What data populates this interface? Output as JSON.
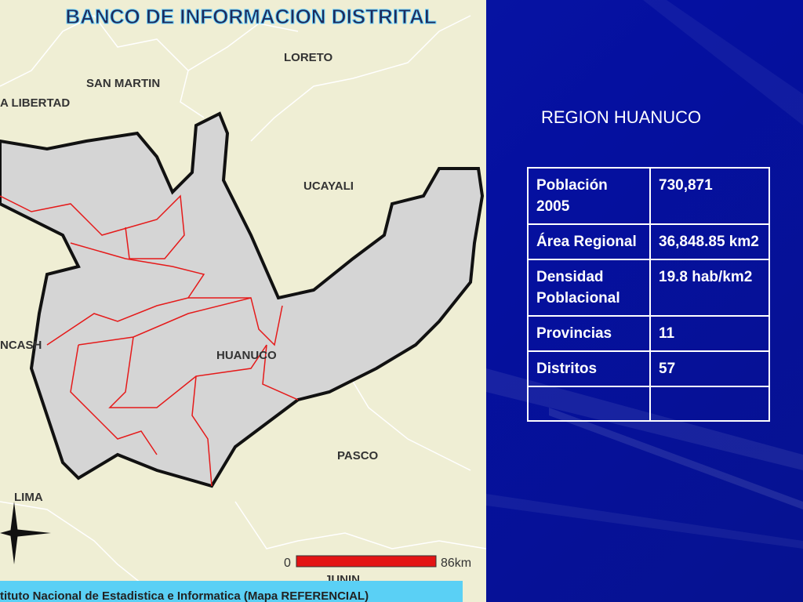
{
  "map": {
    "title": "BANCO DE INFORMACION DISTRITAL",
    "labels": [
      "LORETO",
      "SAN MARTIN",
      "A LIBERTAD",
      "UCAYALI",
      "NCASH",
      "HUANUCO",
      "PASCO",
      "LIMA",
      "JUNIN"
    ],
    "scale": {
      "start": "0",
      "end": "86km"
    },
    "footer": "tituto Nacional de Estadistica e Informatica (Mapa REFERENCIAL)"
  },
  "panel": {
    "heading": "REGION HUANUCO",
    "table": {
      "rows": [
        [
          "Población 2005",
          "730,871"
        ],
        [
          "Área Regional",
          "36,848.85 km2"
        ],
        [
          "Densidad Poblacional",
          "19.8 hab/km2"
        ],
        [
          "Provincias",
          "11"
        ],
        [
          "Distritos",
          "57"
        ]
      ]
    }
  }
}
